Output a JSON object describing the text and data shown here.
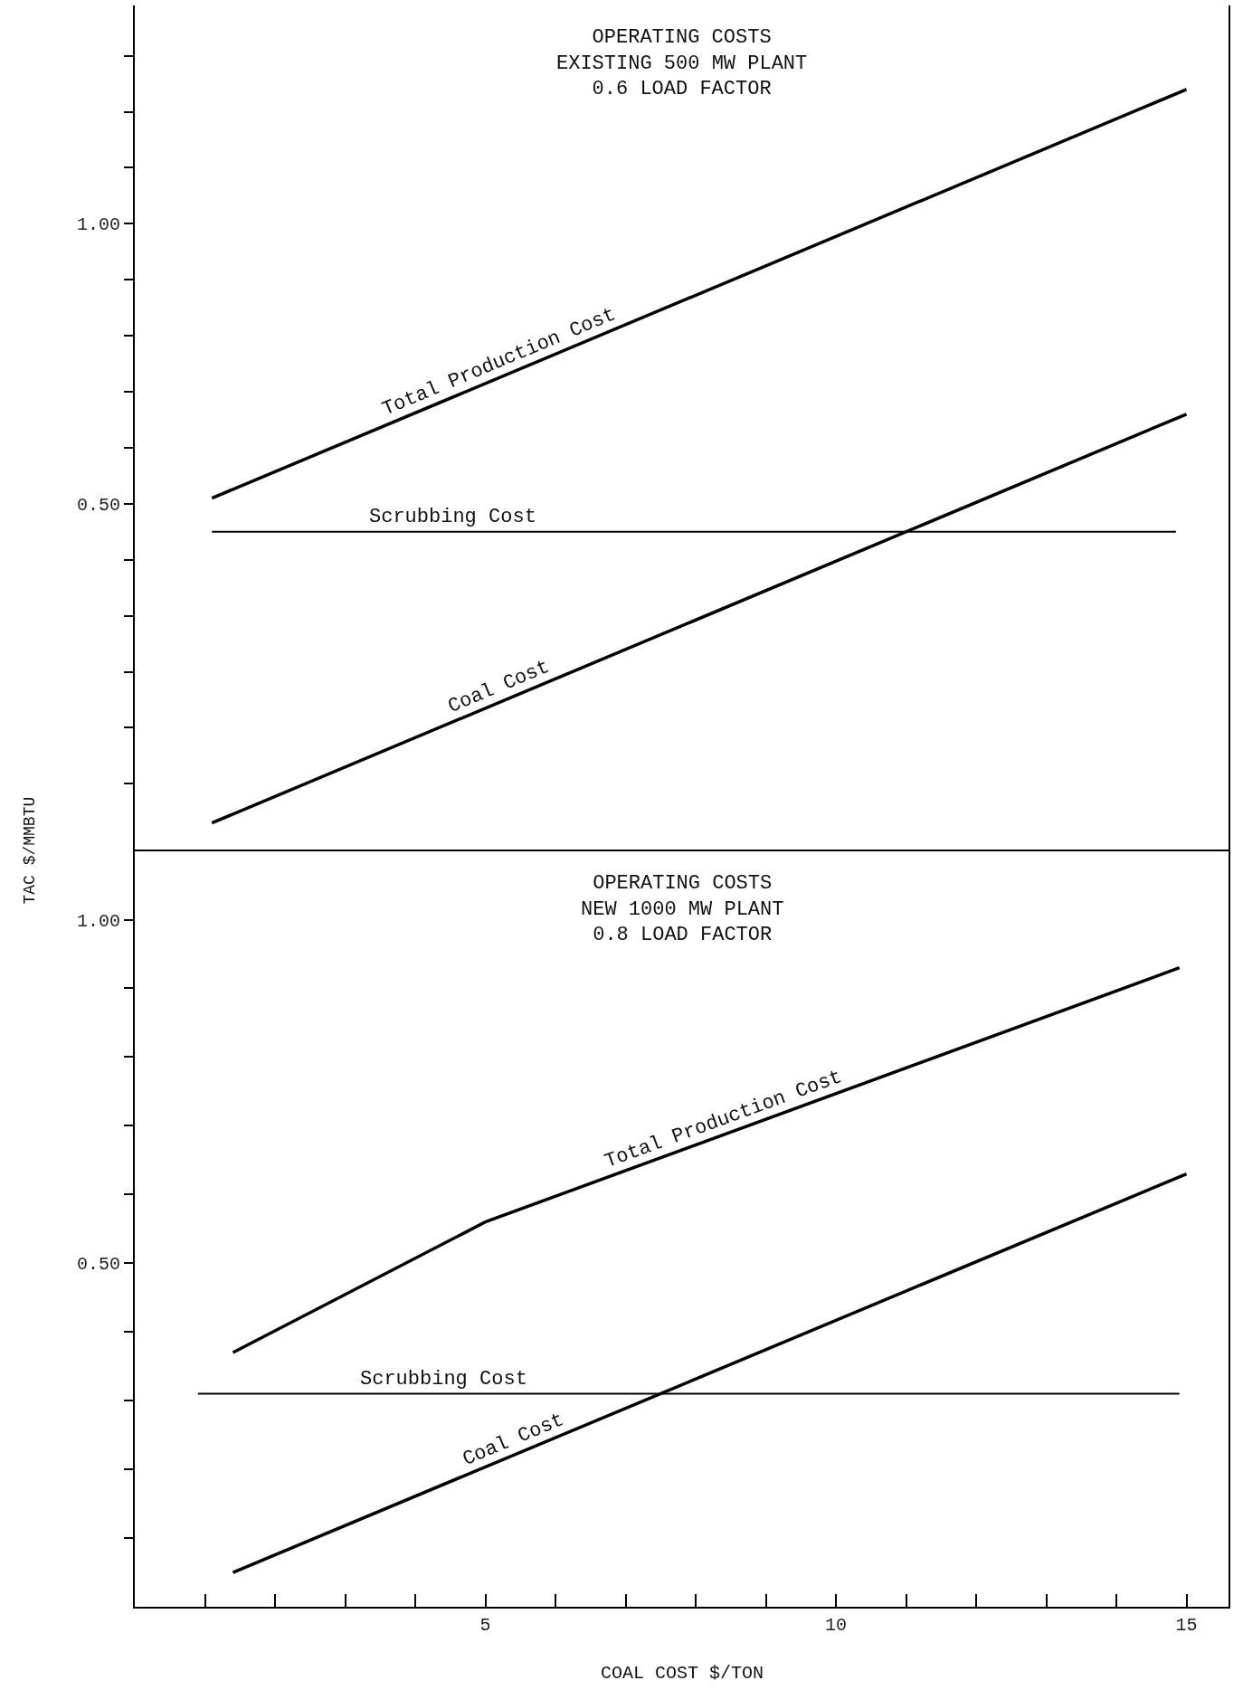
{
  "chart_data": [
    {
      "type": "line",
      "title": "OPERATING COSTS",
      "subtitle": "EXISTING 500 MW PLANT\n0.6 LOAD FACTOR",
      "xlim": [
        0,
        15.6
      ],
      "ylim": [
        -0.12,
        1.39
      ],
      "yticks": [
        {
          "value": 0.0,
          "label": null
        },
        {
          "value": 0.1,
          "label": null
        },
        {
          "value": 0.2,
          "label": null
        },
        {
          "value": 0.3,
          "label": null
        },
        {
          "value": 0.4,
          "label": null
        },
        {
          "value": 0.5,
          "label": "0.50"
        },
        {
          "value": 0.6,
          "label": null
        },
        {
          "value": 0.7,
          "label": null
        },
        {
          "value": 0.8,
          "label": null
        },
        {
          "value": 0.9,
          "label": null
        },
        {
          "value": 1.0,
          "label": "1.00"
        },
        {
          "value": 1.1,
          "label": null
        },
        {
          "value": 1.2,
          "label": null
        },
        {
          "value": 1.3,
          "label": null
        }
      ],
      "tick_labels": "y",
      "legend": false,
      "marker": "none",
      "line_style": "solid",
      "series": [
        {
          "name": "Total Production Cost",
          "color": "#000000",
          "x": [
            1.1,
            15.0
          ],
          "values": [
            0.51,
            1.24
          ]
        },
        {
          "name": "Scrubbing Cost",
          "color": "#000000",
          "x": [
            1.1,
            14.85
          ],
          "values": [
            0.45,
            0.45
          ]
        },
        {
          "name": "Coal Cost",
          "color": "#000000",
          "x": [
            1.1,
            15.0
          ],
          "values": [
            -0.07,
            0.66
          ]
        }
      ]
    },
    {
      "type": "line",
      "title": "OPERATING COSTS",
      "subtitle": "NEW 1000 MW PLANT\n0.8 LOAD FACTOR",
      "xlabel": "COAL COST $/TON",
      "ylabel": "TAC $/MMBTU",
      "xlim": [
        0,
        15.6
      ],
      "ylim": [
        0,
        1.1
      ],
      "xticks": [
        {
          "value": 1,
          "label": null
        },
        {
          "value": 2,
          "label": null
        },
        {
          "value": 3,
          "label": null
        },
        {
          "value": 4,
          "label": null
        },
        5,
        {
          "value": 6,
          "label": null
        },
        {
          "value": 7,
          "label": null
        },
        {
          "value": 8,
          "label": null
        },
        {
          "value": 9,
          "label": null
        },
        10,
        {
          "value": 11,
          "label": null
        },
        {
          "value": 12,
          "label": null
        },
        {
          "value": 13,
          "label": null
        },
        {
          "value": 14,
          "label": null
        },
        15
      ],
      "yticks": [
        {
          "value": 0.1,
          "label": null
        },
        {
          "value": 0.2,
          "label": null
        },
        {
          "value": 0.3,
          "label": null
        },
        {
          "value": 0.4,
          "label": null
        },
        {
          "value": 0.5,
          "label": "0.50"
        },
        {
          "value": 0.6,
          "label": null
        },
        {
          "value": 0.7,
          "label": null
        },
        {
          "value": 0.8,
          "label": null
        },
        {
          "value": 0.9,
          "label": null
        },
        {
          "value": 1.0,
          "label": "1.00"
        }
      ],
      "legend": false,
      "marker": "none",
      "line_style": "solid",
      "series": [
        {
          "name": "Total Production Cost",
          "color": "#000000",
          "x": [
            1.4,
            5.0,
            14.9
          ],
          "values": [
            0.37,
            0.56,
            0.93
          ]
        },
        {
          "name": "Scrubbing Cost",
          "color": "#000000",
          "x": [
            0.9,
            14.9
          ],
          "values": [
            0.31,
            0.31
          ]
        },
        {
          "name": "Coal Cost",
          "color": "#000000",
          "x": [
            1.4,
            15.0
          ],
          "values": [
            0.05,
            0.63
          ]
        }
      ]
    }
  ]
}
